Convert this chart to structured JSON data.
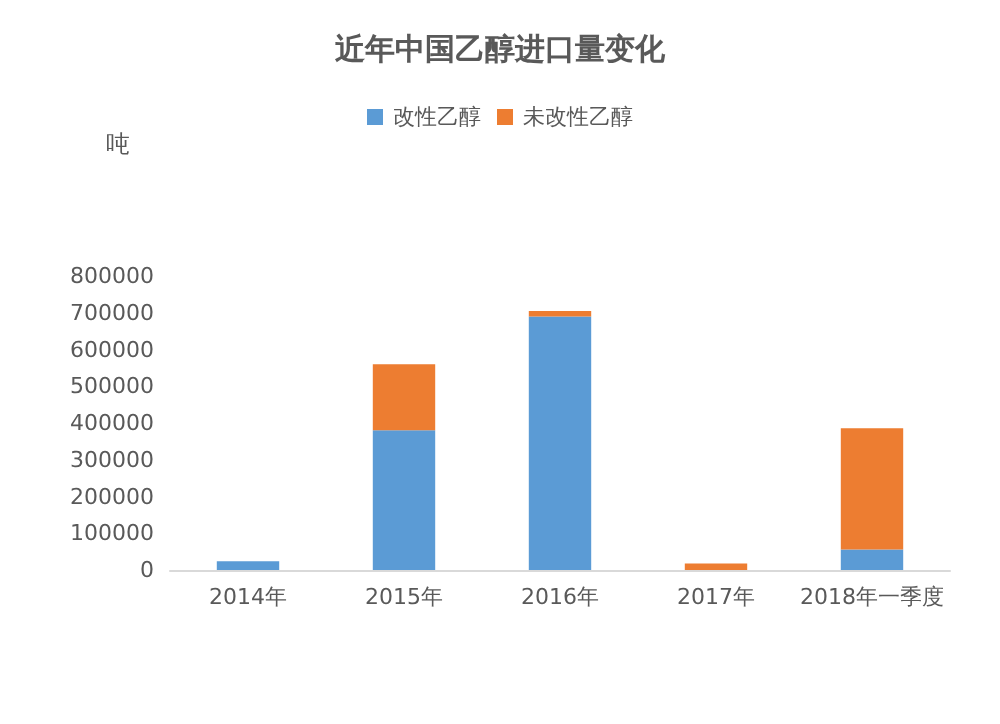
{
  "chart_data": {
    "type": "bar",
    "title": "近年中国乙醇进口量变化",
    "ylabel": "吨",
    "categories": [
      "2014年",
      "2015年",
      "2016年",
      "2017年",
      "2018年一季度"
    ],
    "stacked": true,
    "series": [
      {
        "name": "改性乙醇",
        "color": "#5b9bd5",
        "values": [
          24000,
          380000,
          690000,
          0,
          56000
        ]
      },
      {
        "name": "未改性乙醇",
        "color": "#ed7d31",
        "values": [
          0,
          180000,
          15000,
          18000,
          330000
        ]
      }
    ],
    "ylim": [
      0,
      800000
    ],
    "yticks": [
      0,
      100000,
      200000,
      300000,
      400000,
      500000,
      600000,
      700000,
      800000
    ],
    "grid": false,
    "legend": "top"
  }
}
